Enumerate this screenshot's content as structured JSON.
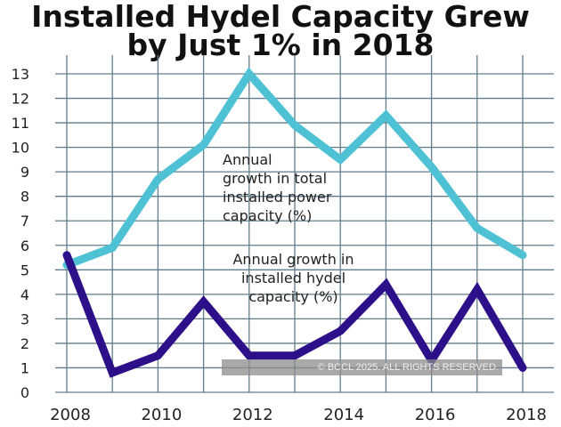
{
  "chart_data": {
    "type": "line",
    "title": "Installed Hydel Capacity Grew by Just 1% in 2018",
    "title_lines": [
      "Installed Hydel Capacity Grew",
      "by Just 1% in 2018"
    ],
    "x": [
      2008,
      2009,
      2010,
      2011,
      2012,
      2013,
      2014,
      2015,
      2016,
      2017,
      2018
    ],
    "x_tick_labels": [
      "2008",
      "2010",
      "2012",
      "2014",
      "2016",
      "2018"
    ],
    "y_tick_labels": [
      "0",
      "1",
      "2",
      "3",
      "4",
      "5",
      "6",
      "7",
      "8",
      "9",
      "10",
      "11",
      "12",
      "13"
    ],
    "ylim": [
      0,
      13
    ],
    "grid": true,
    "series": [
      {
        "name": "Annual growth in total installed power capacity (%)",
        "color": "#4fc1d4",
        "values": [
          5.2,
          5.9,
          8.7,
          10.1,
          13.0,
          10.9,
          9.5,
          11.3,
          9.2,
          6.7,
          5.6
        ]
      },
      {
        "name": "Annual growth in installed hydel capacity (%)",
        "color": "#2e0f8a",
        "values": [
          5.6,
          0.8,
          1.5,
          3.7,
          1.5,
          1.5,
          2.5,
          4.4,
          1.3,
          4.2,
          1.0
        ]
      }
    ],
    "annotations": {
      "total_lines": [
        "Annual",
        "growth in total",
        "installed power",
        "capacity (%)"
      ],
      "hydel_lines": [
        "Annual growth in",
        "installed hydel",
        "capacity  (%)"
      ]
    },
    "watermark": "© BCCL 2025. ALL RIGHTS RESERVED."
  }
}
